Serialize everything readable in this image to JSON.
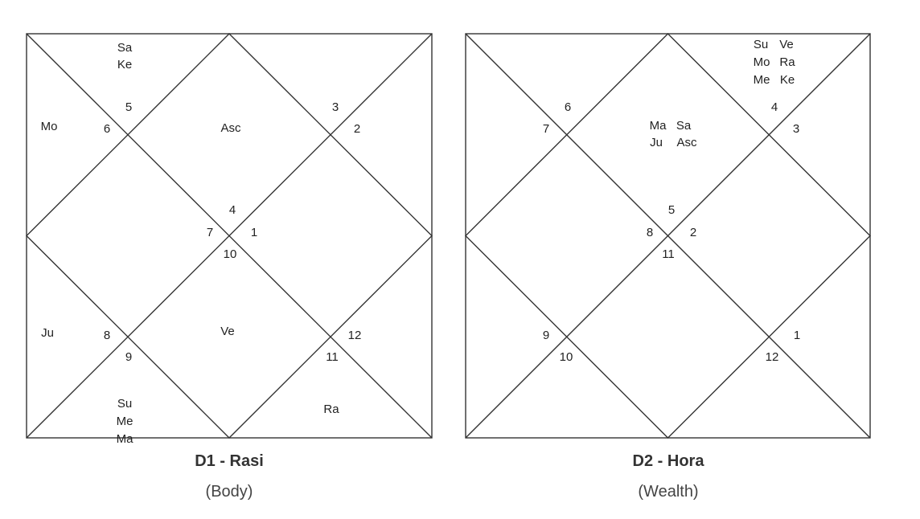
{
  "charts": [
    {
      "title": "D1 - Rasi",
      "subtitle": "(Body)",
      "house_numbers": [
        "1",
        "2",
        "3",
        "4",
        "5",
        "6",
        "7",
        "8",
        "9",
        "10",
        "11",
        "12"
      ],
      "planets": {
        "h1": [
          "Asc"
        ],
        "h2": [
          "Sa",
          "Ke"
        ],
        "h3": [
          "Mo"
        ],
        "h4": [],
        "h5": [],
        "h6": [
          "Ju"
        ],
        "h7": [
          "Ve"
        ],
        "h8": [
          "Su",
          "Me",
          "Ma"
        ],
        "h9": [],
        "h10": [
          "Ra"
        ],
        "h11": [],
        "h12": []
      }
    },
    {
      "title": "D2 - Hora",
      "subtitle": "(Wealth)",
      "house_numbers": [
        "2",
        "3",
        "4",
        "5",
        "6",
        "7",
        "8",
        "9",
        "10",
        "11",
        "12",
        "1"
      ],
      "planets": {
        "h1": [
          "Ma",
          "Sa",
          "Ju",
          "Asc"
        ],
        "h2": [],
        "h3": [],
        "h4": [],
        "h5": [],
        "h6": [],
        "h7": [],
        "h8": [],
        "h9": [],
        "h10": [],
        "h11": [],
        "h12": [
          "Su",
          "Ve",
          "Mo",
          "Ra",
          "Me",
          "Ke"
        ]
      }
    }
  ],
  "colors": {
    "lines": "#333333",
    "text": "#222222",
    "background": "#ffffff"
  }
}
